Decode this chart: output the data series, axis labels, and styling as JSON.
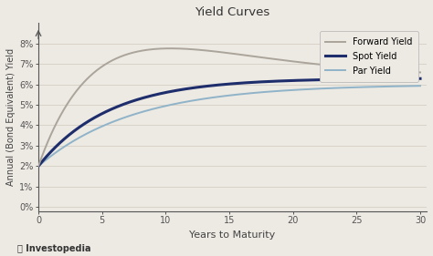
{
  "title": "Yield Curves",
  "xlabel": "Years to Maturity",
  "ylabel": "Annual (Bond Equivalent) Yield",
  "background_color": "#ede9e3",
  "plot_bg_color": "#ede9e3",
  "grid_color": "#d8d2c8",
  "xlim": [
    0,
    30.5
  ],
  "ylim": [
    -0.002,
    0.09
  ],
  "xticks": [
    0,
    5,
    10,
    15,
    20,
    25,
    30
  ],
  "yticks": [
    0.0,
    0.01,
    0.02,
    0.03,
    0.04,
    0.05,
    0.06,
    0.07,
    0.08
  ],
  "ytick_labels": [
    "0%",
    "1%",
    "2%",
    "3%",
    "4%",
    "5%",
    "6%",
    "7%",
    "8%"
  ],
  "forward_color": "#aaa49b",
  "spot_color": "#1e2d6b",
  "par_color": "#8fb3c8",
  "legend_labels": [
    "Forward Yield",
    "Spot Yield",
    "Par Yield"
  ],
  "spot_linewidth": 2.2,
  "forward_linewidth": 1.4,
  "par_linewidth": 1.4,
  "nelson_siegel_forward": [
    0.063,
    -0.043,
    0.072,
    6.5
  ],
  "spot_params": [
    0.02,
    0.043,
    5.5
  ],
  "par_params": [
    0.02,
    0.04,
    7.5
  ]
}
